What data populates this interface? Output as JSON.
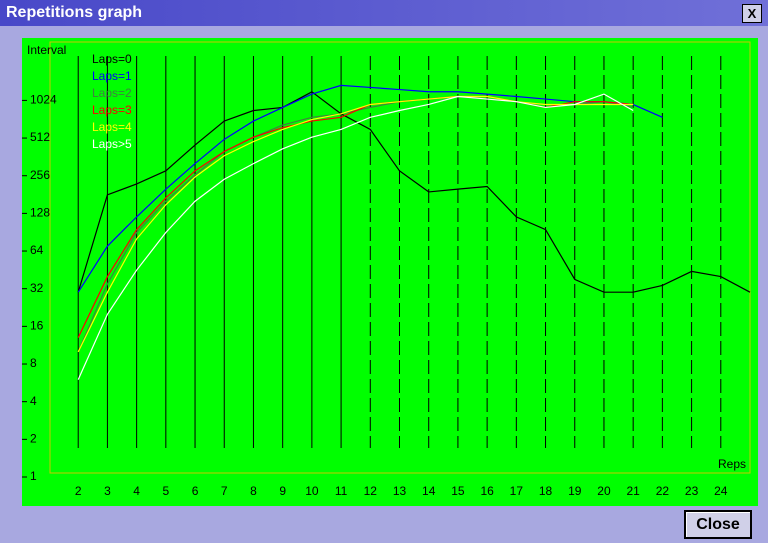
{
  "window": {
    "title": "Repetitions graph",
    "close_icon": "X",
    "close_button": "Close"
  },
  "chart_data": {
    "type": "line",
    "y_label": "Interval",
    "x_label": "Reps",
    "log_scale_y": true,
    "grid": true,
    "x": [
      2,
      3,
      4,
      5,
      6,
      7,
      8,
      9,
      10,
      11,
      12,
      13,
      14,
      15,
      16,
      17,
      18,
      19,
      20,
      21,
      22,
      23,
      24,
      25
    ],
    "xlim": [
      1,
      25
    ],
    "xticks": [
      2,
      3,
      4,
      5,
      6,
      7,
      8,
      9,
      10,
      11,
      12,
      13,
      14,
      15,
      16,
      17,
      18,
      19,
      20,
      21,
      22,
      23,
      24
    ],
    "ylim": [
      1,
      3000
    ],
    "yticks": [
      1,
      2,
      4,
      8,
      16,
      32,
      64,
      128,
      256,
      512,
      1024
    ],
    "series": [
      {
        "name": "Laps=0",
        "color": "#000000",
        "values": [
          30,
          180,
          220,
          280,
          450,
          700,
          850,
          900,
          1200,
          800,
          600,
          280,
          190,
          200,
          210,
          120,
          95,
          38,
          30,
          30,
          34,
          44,
          40,
          30
        ]
      },
      {
        "name": "Laps=1",
        "color": "#0000ff",
        "values": [
          30,
          70,
          120,
          200,
          320,
          500,
          700,
          900,
          1150,
          1350,
          1300,
          1250,
          1200,
          1200,
          1150,
          1100,
          1050,
          1000,
          1000,
          950,
          750,
          null,
          null,
          null
        ]
      },
      {
        "name": "Laps=2",
        "color": "#408040",
        "values": [
          10,
          35,
          90,
          160,
          260,
          400,
          520,
          650,
          750,
          800,
          900,
          1000,
          1050,
          1100,
          1050,
          1000,
          950,
          950,
          1000,
          900,
          null,
          null,
          null,
          null
        ]
      },
      {
        "name": "Laps=3",
        "color": "#ff0000",
        "values": [
          13,
          40,
          95,
          170,
          280,
          400,
          520,
          620,
          700,
          750,
          950,
          1000,
          1050,
          1100,
          1100,
          1000,
          900,
          1000,
          1000,
          950,
          null,
          null,
          null,
          null
        ]
      },
      {
        "name": "Laps=4",
        "color": "#ffff00",
        "values": [
          10,
          30,
          80,
          150,
          250,
          370,
          480,
          600,
          720,
          800,
          950,
          1000,
          1050,
          1100,
          1100,
          1000,
          950,
          950,
          950,
          950,
          null,
          null,
          null,
          null
        ]
      },
      {
        "name": "Laps>5",
        "color": "#ffffff",
        "values": [
          6,
          20,
          45,
          90,
          160,
          240,
          320,
          420,
          520,
          600,
          750,
          850,
          950,
          1100,
          1050,
          1000,
          900,
          950,
          1150,
          850,
          null,
          null,
          null,
          null
        ]
      }
    ]
  }
}
